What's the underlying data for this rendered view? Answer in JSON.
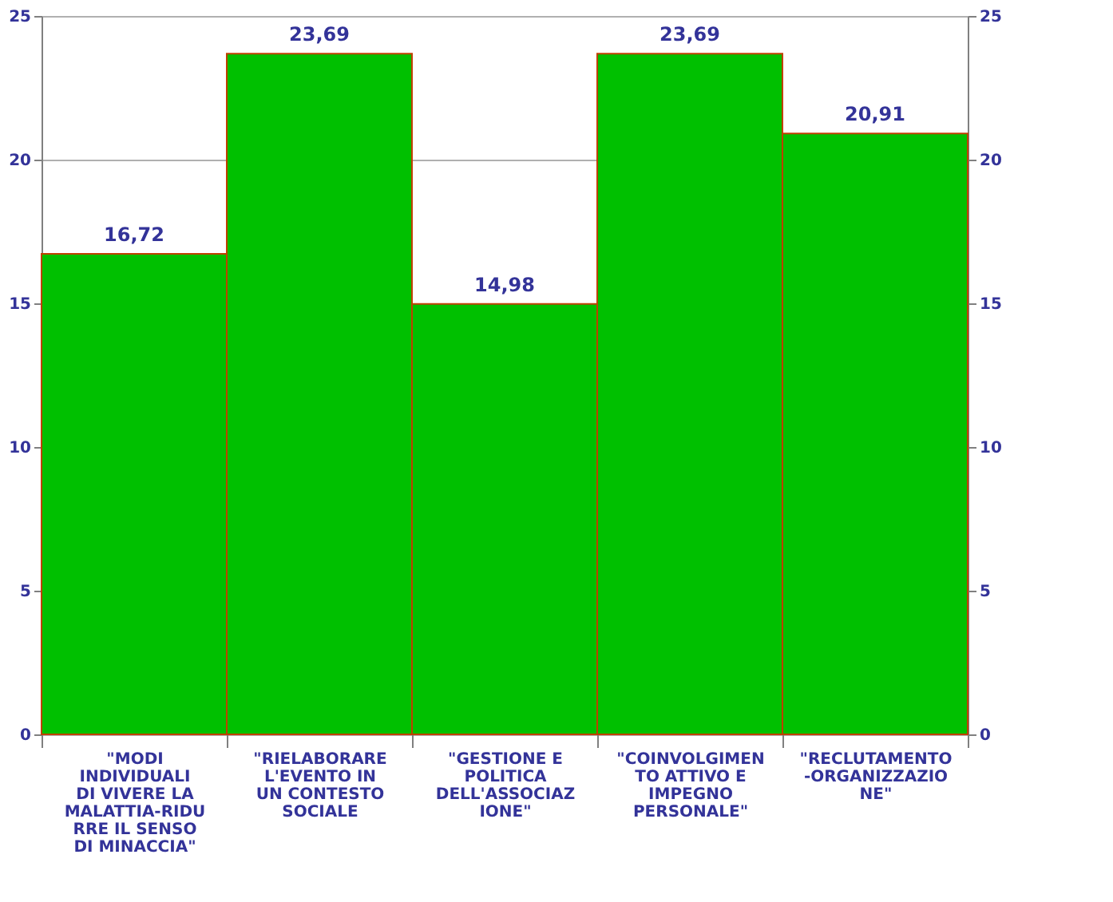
{
  "chart_data": {
    "type": "bar",
    "categories": [
      "\"MODI INDIVIDUALI DI VIVERE LA MALATTIA-RIDURRE IL SENSO DI MINACCIA\"",
      "\"RIELABORARE L'EVENTO IN UN CONTESTO SOCIALE",
      "\"GESTIONE E POLITICA DELL'ASSOCIAZIONE\"",
      "\"COINVOLGIMENTO ATTIVO E IMPEGNO PERSONALE\"",
      "\"RECLUTAMENTO-ORGANIZZAZIONE\""
    ],
    "values": [
      16.72,
      23.69,
      14.98,
      23.69,
      20.91
    ],
    "value_labels": [
      "16,72",
      "23,69",
      "14,98",
      "23,69",
      "20,91"
    ],
    "color": "#00c000",
    "ylim": [
      0,
      25
    ],
    "yticks": [
      0,
      5,
      10,
      15,
      20,
      25
    ],
    "y2lim": [
      0,
      25
    ],
    "y2ticks": [
      0,
      5,
      10,
      15,
      20,
      25
    ],
    "grid": "y"
  }
}
